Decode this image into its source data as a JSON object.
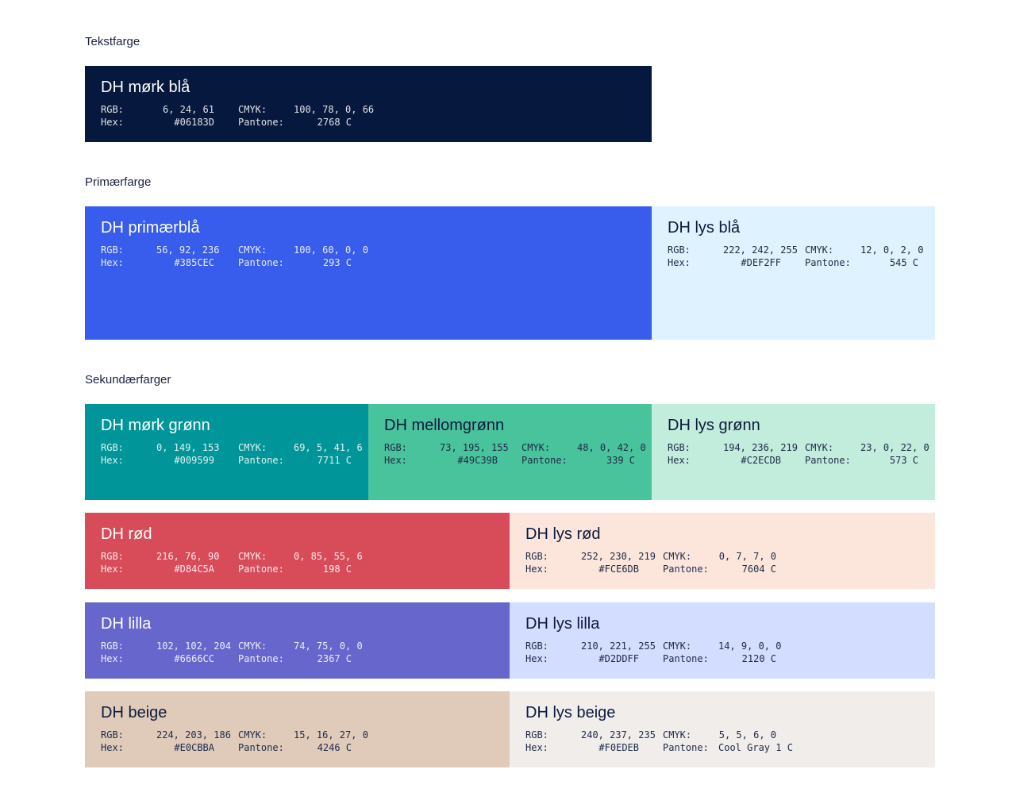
{
  "sections": [
    {
      "title": "Tekstfarge"
    },
    {
      "title": "Primærfarge"
    },
    {
      "title": "Sekundærfarger"
    }
  ],
  "labels": {
    "rgb": "RGB:",
    "hex": "Hex:",
    "cmyk": "CMYK:",
    "pantone": "Pantone:"
  },
  "colors": [
    {
      "name": "DH mørk blå",
      "rgb": "6, 24, 61",
      "hex": "#06183D",
      "cmyk": "100, 78, 0, 66",
      "pantone": "2768 C",
      "bg": "#06183D",
      "tone": "dark"
    },
    {
      "name": "DH primærblå",
      "rgb": "56, 92, 236",
      "hex": "#385CEC",
      "cmyk": "100, 60, 0, 0",
      "pantone": "293 C",
      "bg": "#385CEC",
      "tone": "dark"
    },
    {
      "name": "DH lys blå",
      "rgb": "222, 242, 255",
      "hex": "#DEF2FF",
      "cmyk": "12, 0, 2, 0",
      "pantone": "545 C",
      "bg": "#DEF2FF",
      "tone": "light"
    },
    {
      "name": "DH mørk grønn",
      "rgb": "0, 149, 153",
      "hex": "#009599",
      "cmyk": "69, 5, 41, 6",
      "pantone": "7711 C",
      "bg": "#009599",
      "tone": "dark"
    },
    {
      "name": "DH mellomgrønn",
      "rgb": "73, 195, 155",
      "hex": "#49C39B",
      "cmyk": "48, 0, 42, 0",
      "pantone": "339 C",
      "bg": "#49C39B",
      "tone": "light"
    },
    {
      "name": "DH lys grønn",
      "rgb": "194, 236, 219",
      "hex": "#C2ECDB",
      "cmyk": "23, 0, 22, 0",
      "pantone": "573 C",
      "bg": "#C2ECDB",
      "tone": "light"
    },
    {
      "name": "DH rød",
      "rgb": "216, 76, 90",
      "hex": "#D84C5A",
      "cmyk": "0, 85, 55, 6",
      "pantone": "198 C",
      "bg": "#D84C5A",
      "tone": "dark"
    },
    {
      "name": "DH lys rød",
      "rgb": "252, 230, 219",
      "hex": "#FCE6DB",
      "cmyk": "0, 7, 7, 0",
      "pantone": "7604 C",
      "bg": "#FCE6DB",
      "tone": "light"
    },
    {
      "name": "DH lilla",
      "rgb": "102, 102, 204",
      "hex": "#6666CC",
      "cmyk": "74, 75, 0, 0",
      "pantone": "2367 C",
      "bg": "#6666CC",
      "tone": "dark"
    },
    {
      "name": "DH lys lilla",
      "rgb": "210, 221, 255",
      "hex": "#D2DDFF",
      "cmyk": "14, 9, 0, 0",
      "pantone": "2120 C",
      "bg": "#D2DDFF",
      "tone": "light"
    },
    {
      "name": "DH beige",
      "rgb": "224, 203, 186",
      "hex": "#E0CBBA",
      "cmyk": "15, 16, 27, 0",
      "pantone": "4246 C",
      "bg": "#E0CBBA",
      "tone": "light"
    },
    {
      "name": "DH lys beige",
      "rgb": "240, 237, 235",
      "hex": "#F0EDEB",
      "cmyk": "5, 5, 6, 0",
      "pantone": "Cool Gray 1 C",
      "bg": "#F0EDEB",
      "tone": "light"
    }
  ]
}
